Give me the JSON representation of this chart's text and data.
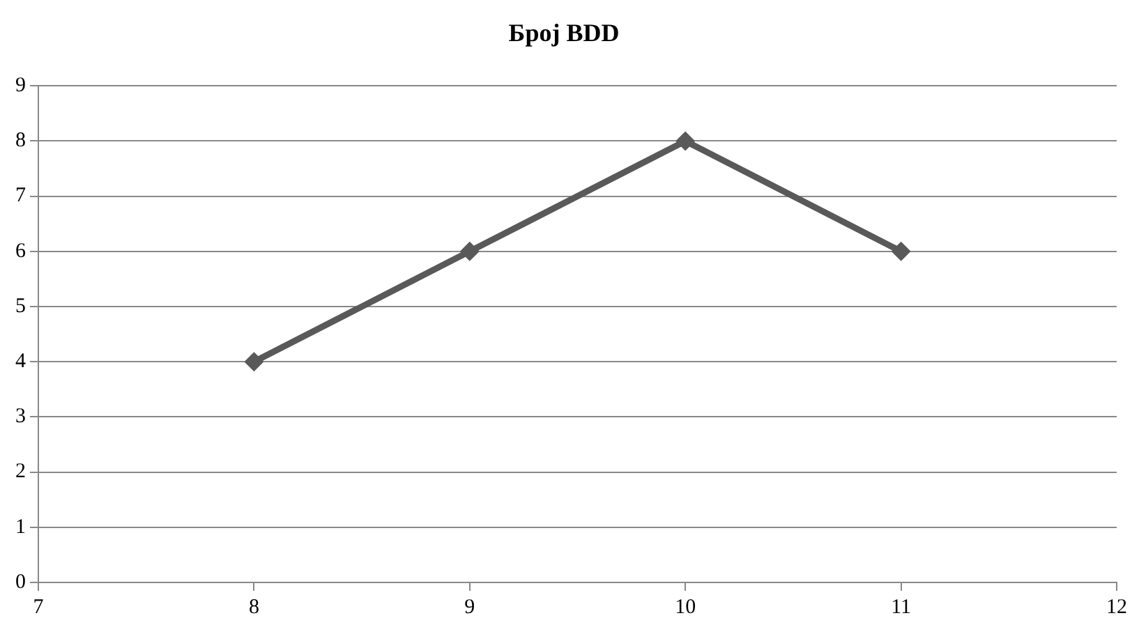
{
  "chart_data": {
    "type": "line",
    "title": "Број BDD",
    "x": [
      8,
      9,
      10,
      11
    ],
    "series": [
      {
        "color": "#595959",
        "values": [
          4,
          6,
          8,
          6
        ]
      }
    ],
    "xlim": [
      7,
      12
    ],
    "xticks": [
      7,
      8,
      9,
      10,
      11,
      12
    ],
    "ylim": [
      0,
      9
    ],
    "yticks": [
      0,
      1,
      2,
      3,
      4,
      5,
      6,
      7,
      8,
      9
    ],
    "grid": "y",
    "legend": false,
    "marker": "diamond",
    "line_style": "solid"
  }
}
